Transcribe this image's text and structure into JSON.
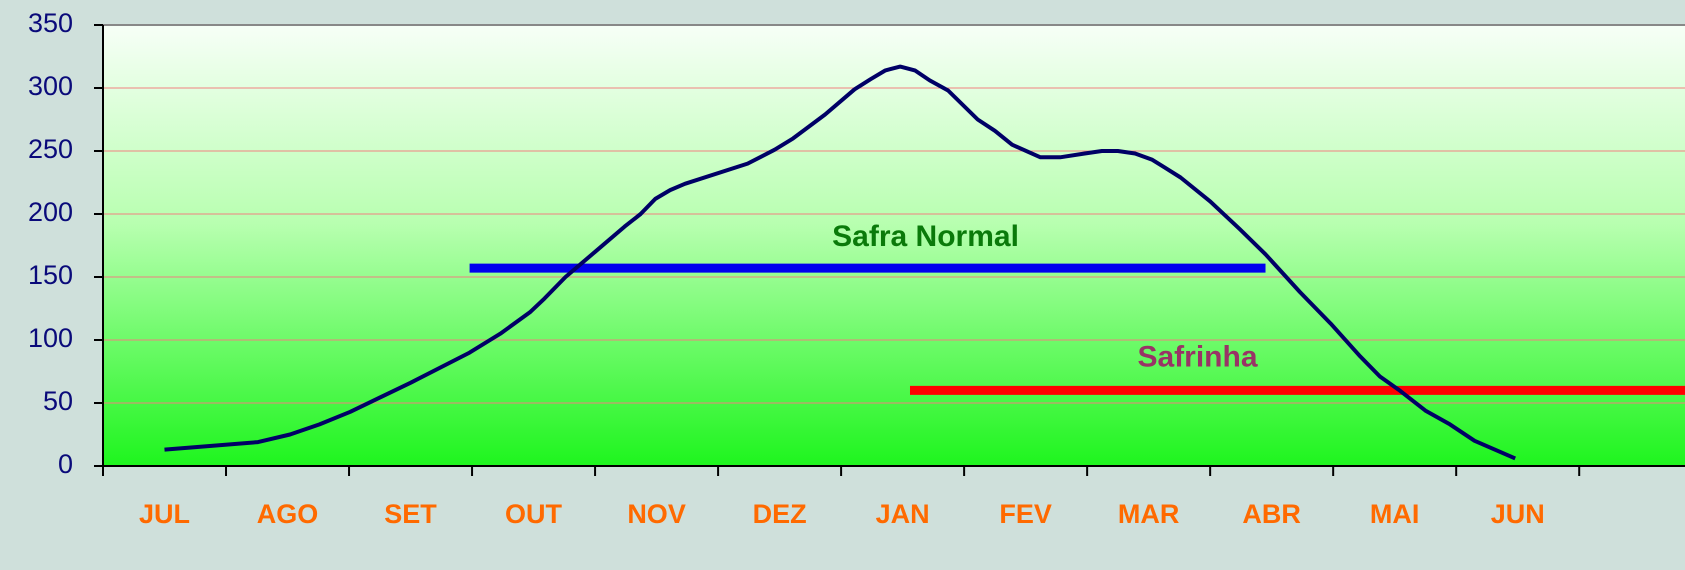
{
  "chart_data": {
    "type": "line",
    "categories": [
      "JUL",
      "AGO",
      "SET",
      "OUT",
      "NOV",
      "DEZ",
      "JAN",
      "FEV",
      "MAR",
      "ABR",
      "MAI",
      "JUN"
    ],
    "series": [
      {
        "color": "#000066",
        "x": [
          0.5,
          1.26,
          1.52,
          1.76,
          2.01,
          2.5,
          2.98,
          3.23,
          3.47,
          3.59,
          3.76,
          4.0,
          4.24,
          4.37,
          4.49,
          4.61,
          4.73,
          5.24,
          5.46,
          5.61,
          5.87,
          6.11,
          6.24,
          6.36,
          6.48,
          6.6,
          6.72,
          6.87,
          7.11,
          7.25,
          7.39,
          7.62,
          7.78,
          7.98,
          8.12,
          8.25,
          8.39,
          8.53,
          8.63,
          8.76,
          9.0,
          9.24,
          9.45,
          9.73,
          9.98,
          10.22,
          10.38,
          10.54,
          10.75,
          10.95,
          11.15,
          11.48
        ],
        "values": [
          13,
          19,
          25,
          33,
          43,
          66,
          90,
          105,
          122,
          133,
          150,
          170,
          190,
          200,
          212,
          219,
          224,
          240,
          251,
          260,
          279,
          299,
          307,
          314,
          317,
          314,
          306,
          298,
          275,
          266,
          255,
          245,
          245,
          248,
          250,
          250,
          248,
          243,
          237,
          229,
          210,
          188,
          168,
          138,
          113,
          87,
          71,
          60,
          44,
          33,
          20,
          6
        ]
      }
    ],
    "segments": [
      {
        "name": "Safra Normal",
        "color": "#0000ee",
        "label_color": "#0a7a0a",
        "x": [
          2.98,
          9.45
        ],
        "values": [
          157,
          157
        ]
      },
      {
        "name": "Safrinha",
        "color": "#ff0000",
        "label_color": "#993366",
        "x": [
          6.56,
          12.86
        ],
        "values": [
          60,
          60
        ]
      }
    ],
    "xlim": [
      0,
      12.86
    ],
    "ylim": [
      0,
      350
    ],
    "yticks": [
      0,
      50,
      100,
      150,
      200,
      250,
      300,
      350
    ],
    "grid": true
  }
}
